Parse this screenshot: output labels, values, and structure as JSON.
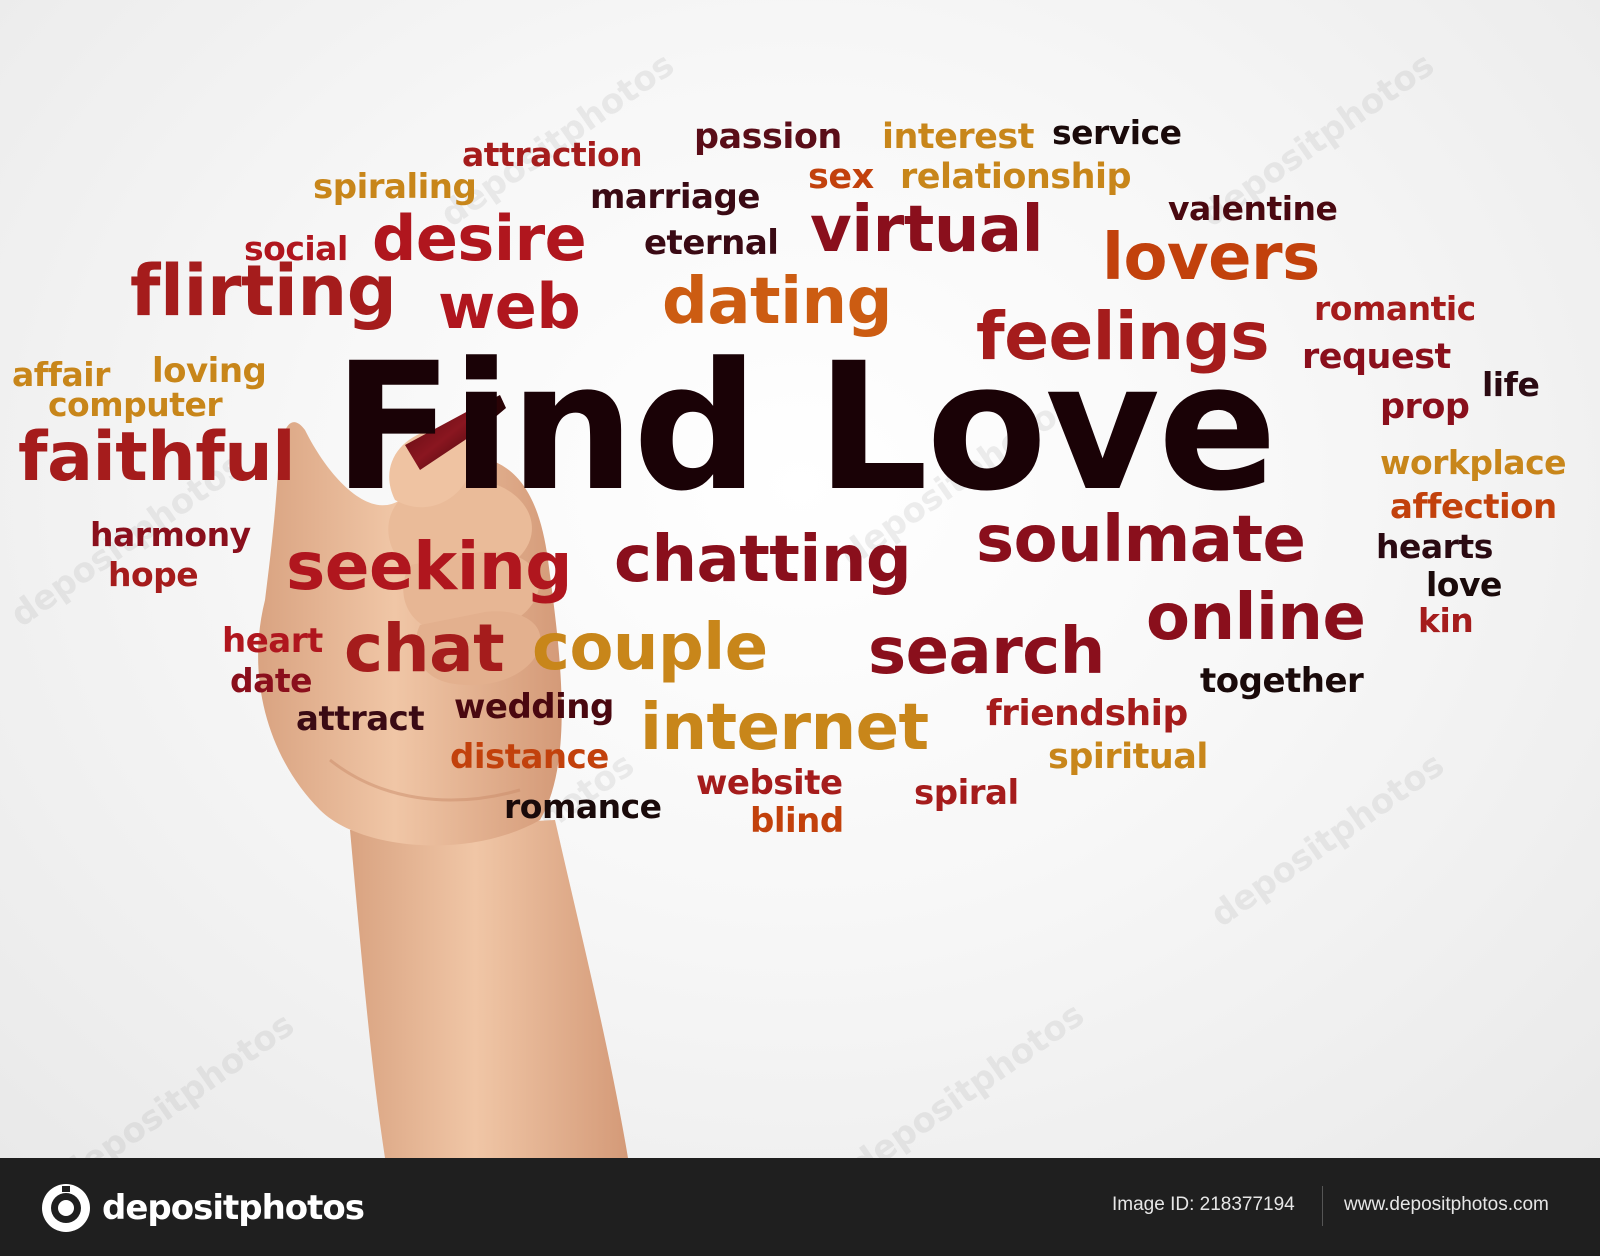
{
  "colors": {
    "dark": "#2b0a12",
    "wine": "#7a0f2a",
    "crimson": "#b0161e",
    "red": "#a51c1c",
    "rust": "#c2410c",
    "orange": "#cc5c12",
    "amber": "#c8861a",
    "ochre": "#b8860b",
    "headline": "#1a0206",
    "footer_bg": "#1f1f1f"
  },
  "headline": "Find Love",
  "words": [
    "attraction",
    "passion",
    "interest",
    "service",
    "spiraling",
    "marriage",
    "sex",
    "relationship",
    "valentine",
    "social",
    "desire",
    "eternal",
    "virtual",
    "lovers",
    "flirting",
    "web",
    "dating",
    "romantic",
    "feelings",
    "affair",
    "loving",
    "request",
    "computer",
    "life",
    "prop",
    "faithful",
    "workplace",
    "affection",
    "harmony",
    "soulmate",
    "hearts",
    "hope",
    "seeking",
    "chatting",
    "love",
    "online",
    "kin",
    "heart",
    "chat",
    "couple",
    "search",
    "date",
    "together",
    "attract",
    "wedding",
    "friendship",
    "internet",
    "distance",
    "spiritual",
    "website",
    "spiral",
    "romance",
    "blind"
  ],
  "watermark": "depositphotos",
  "footer": {
    "logo_text": "depositphotos",
    "image_id": "Image ID: 218377194",
    "site": "www.depositphotos.com"
  }
}
